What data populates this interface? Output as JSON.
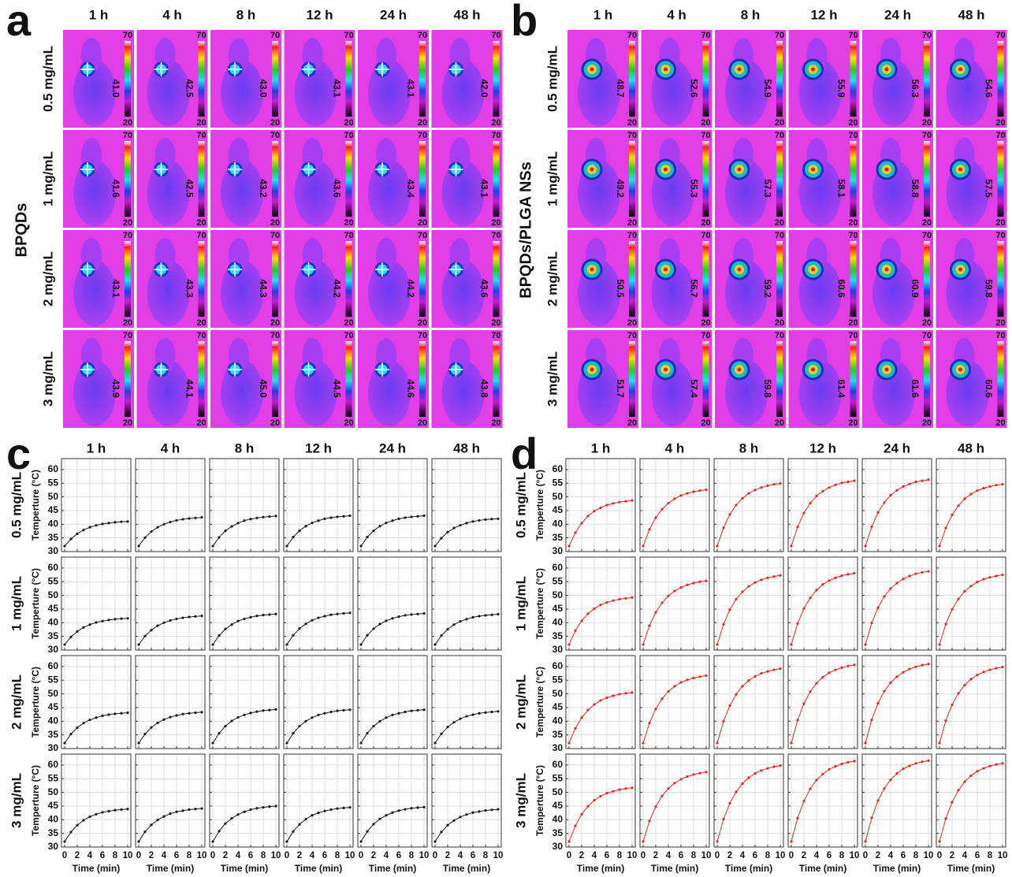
{
  "thermal": [
    {
      "letter": "a",
      "title": "BPQDs",
      "col_labels": [
        "1 h",
        "4 h",
        "8 h",
        "12 h",
        "24 h",
        "48 h"
      ],
      "row_labels": [
        "0.5 mg/mL",
        "1 mg/mL",
        "2 mg/mL",
        "3 mg/mL"
      ],
      "scale_max": "70",
      "scale_min": "20",
      "max_temps": [
        [
          "41.0",
          "42.5",
          "43.0",
          "43.1",
          "43.1",
          "42.0"
        ],
        [
          "41.6",
          "42.5",
          "43.2",
          "43.6",
          "43.4",
          "43.1"
        ],
        [
          "43.1",
          "43.3",
          "44.3",
          "44.2",
          "44.2",
          "43.6"
        ],
        [
          "43.9",
          "44.1",
          "45.0",
          "44.5",
          "44.6",
          "43.8"
        ]
      ]
    },
    {
      "letter": "b",
      "title": "BPQDs/PLGA NSs",
      "col_labels": [
        "1 h",
        "4 h",
        "8 h",
        "12 h",
        "24 h",
        "48 h"
      ],
      "row_labels": [
        "0.5 mg/mL",
        "1 mg/mL",
        "2 mg/mL",
        "3 mg/mL"
      ],
      "scale_max": "70",
      "scale_min": "20",
      "max_temps": [
        [
          "48.7",
          "52.6",
          "54.9",
          "55.9",
          "56.3",
          "54.6"
        ],
        [
          "49.2",
          "55.3",
          "57.3",
          "58.1",
          "58.8",
          "57.5"
        ],
        [
          "50.5",
          "56.7",
          "59.2",
          "60.6",
          "60.9",
          "59.8"
        ],
        [
          "51.7",
          "57.4",
          "59.8",
          "61.4",
          "61.6",
          "60.6"
        ]
      ]
    }
  ],
  "chart_data": [
    {
      "type": "line",
      "letter": "c",
      "col_labels": [
        "1 h",
        "4 h",
        "8 h",
        "12 h",
        "24 h",
        "48 h"
      ],
      "row_labels": [
        "0.5 mg/mL",
        "1 mg/mL",
        "2 mg/mL",
        "3 mg/mL"
      ],
      "xlabel": "Time (min)",
      "ylabel": "Temperture (°C)",
      "x": [
        0,
        1,
        2,
        3,
        4,
        5,
        6,
        7,
        8,
        9,
        10
      ],
      "xlim": [
        -0.5,
        10.5
      ],
      "ylim": [
        30,
        64
      ],
      "xticks": [
        0,
        2,
        4,
        6,
        8,
        10
      ],
      "yticks": [
        30,
        35,
        40,
        45,
        50,
        55,
        60
      ],
      "grid": true,
      "color": "#1a1a1a",
      "values": [
        [
          [
            32,
            34.6,
            36.5,
            37.9,
            38.9,
            39.6,
            40.1,
            40.4,
            40.7,
            40.9,
            41.0
          ],
          [
            32,
            35.1,
            37.3,
            38.9,
            40.0,
            40.8,
            41.4,
            41.8,
            42.1,
            42.3,
            42.5
          ],
          [
            32,
            35.2,
            37.6,
            39.2,
            40.4,
            41.3,
            41.9,
            42.3,
            42.6,
            42.8,
            43.0
          ],
          [
            32,
            35.3,
            37.6,
            39.3,
            40.5,
            41.3,
            42.0,
            42.4,
            42.7,
            42.9,
            43.1
          ],
          [
            32,
            35.3,
            37.6,
            39.3,
            40.5,
            41.3,
            42.0,
            42.4,
            42.7,
            42.9,
            43.1
          ],
          [
            32,
            34.9,
            37.1,
            38.6,
            39.6,
            40.4,
            41.0,
            41.4,
            41.7,
            41.9,
            42.0
          ]
        ],
        [
          [
            32,
            34.8,
            36.8,
            38.3,
            39.3,
            40.1,
            40.6,
            41.0,
            41.3,
            41.5,
            41.6
          ],
          [
            32,
            35.1,
            37.3,
            38.9,
            40.0,
            40.8,
            41.4,
            41.8,
            42.1,
            42.3,
            42.5
          ],
          [
            32,
            35.3,
            37.7,
            39.3,
            40.6,
            41.4,
            42.0,
            42.5,
            42.8,
            43.0,
            43.2
          ],
          [
            32,
            35.4,
            37.9,
            39.6,
            40.9,
            41.8,
            42.4,
            42.9,
            43.2,
            43.4,
            43.6
          ],
          [
            32,
            35.4,
            37.8,
            39.5,
            40.7,
            41.6,
            42.2,
            42.7,
            43.0,
            43.2,
            43.4
          ],
          [
            32,
            35.3,
            37.6,
            39.3,
            40.5,
            41.3,
            42.0,
            42.4,
            42.7,
            42.9,
            43.1
          ]
        ],
        [
          [
            32,
            35.3,
            37.6,
            39.3,
            40.5,
            41.3,
            42.0,
            42.4,
            42.7,
            42.9,
            43.1
          ],
          [
            32,
            35.3,
            37.7,
            39.4,
            40.6,
            41.5,
            42.1,
            42.6,
            42.9,
            43.1,
            43.3
          ],
          [
            32,
            35.6,
            38.2,
            40.1,
            41.4,
            42.3,
            43.0,
            43.5,
            43.9,
            44.1,
            44.3
          ],
          [
            32,
            35.6,
            38.2,
            40.0,
            41.3,
            42.3,
            42.9,
            43.4,
            43.8,
            44.0,
            44.2
          ],
          [
            32,
            35.6,
            38.2,
            40.0,
            41.3,
            42.3,
            42.9,
            43.4,
            43.8,
            44.0,
            44.2
          ],
          [
            32,
            35.4,
            37.9,
            39.6,
            40.9,
            41.8,
            42.4,
            42.9,
            43.2,
            43.4,
            43.6
          ]
        ],
        [
          [
            32,
            35.5,
            38.0,
            39.8,
            41.1,
            42.0,
            42.7,
            43.1,
            43.5,
            43.7,
            43.9
          ],
          [
            32,
            35.6,
            38.1,
            39.9,
            41.2,
            42.2,
            42.9,
            43.3,
            43.7,
            43.9,
            44.1
          ],
          [
            32,
            35.8,
            38.6,
            40.5,
            41.9,
            42.9,
            43.7,
            44.2,
            44.5,
            44.8,
            45.0
          ],
          [
            32,
            35.7,
            38.3,
            40.2,
            41.6,
            42.5,
            43.2,
            43.7,
            44.1,
            44.3,
            44.5
          ],
          [
            32,
            35.7,
            38.4,
            40.3,
            41.6,
            42.6,
            43.3,
            43.8,
            44.2,
            44.4,
            44.6
          ],
          [
            32,
            35.5,
            38.0,
            39.7,
            41.0,
            41.9,
            42.6,
            43.0,
            43.4,
            43.6,
            43.8
          ]
        ]
      ]
    },
    {
      "type": "line",
      "letter": "d",
      "col_labels": [
        "1 h",
        "4 h",
        "8 h",
        "12 h",
        "24 h",
        "48 h"
      ],
      "row_labels": [
        "0.5 mg/mL",
        "1 mg/mL",
        "2 mg/mL",
        "3 mg/mL"
      ],
      "xlabel": "Time (min)",
      "ylabel": "Temperture (°C)",
      "x": [
        0,
        1,
        2,
        3,
        4,
        5,
        6,
        7,
        8,
        9,
        10
      ],
      "xlim": [
        -0.5,
        10.5
      ],
      "ylim": [
        30,
        64
      ],
      "xticks": [
        0,
        2,
        4,
        6,
        8,
        10
      ],
      "yticks": [
        30,
        35,
        40,
        45,
        50,
        55,
        60
      ],
      "grid": true,
      "color": "#e8261e",
      "values": [
        [
          [
            32,
            36.9,
            40.4,
            43.0,
            44.8,
            46.0,
            47.0,
            47.6,
            48.1,
            48.4,
            48.7
          ],
          [
            32,
            38.1,
            42.4,
            45.5,
            47.7,
            49.3,
            50.5,
            51.3,
            51.9,
            52.3,
            52.6
          ],
          [
            32,
            38.7,
            43.6,
            47.0,
            49.5,
            51.3,
            52.5,
            53.4,
            54.1,
            54.6,
            54.9
          ],
          [
            32,
            39.0,
            44.1,
            47.7,
            50.3,
            52.1,
            53.4,
            54.4,
            55.1,
            55.5,
            55.9
          ],
          [
            32,
            39.1,
            44.3,
            47.9,
            50.6,
            52.4,
            53.8,
            54.7,
            55.5,
            55.9,
            56.3
          ],
          [
            32,
            38.6,
            43.4,
            46.8,
            49.3,
            51.0,
            52.3,
            53.2,
            53.8,
            54.3,
            54.6
          ]
        ],
        [
          [
            32,
            37.1,
            40.7,
            43.3,
            45.1,
            46.5,
            47.4,
            48.1,
            48.6,
            48.9,
            49.2
          ],
          [
            32,
            38.9,
            43.8,
            47.3,
            49.8,
            51.6,
            52.9,
            53.8,
            54.5,
            55.0,
            55.3
          ],
          [
            32,
            39.4,
            44.8,
            48.6,
            51.3,
            53.3,
            54.7,
            55.7,
            56.4,
            56.9,
            57.3
          ],
          [
            32,
            39.7,
            45.2,
            49.1,
            51.9,
            54.0,
            55.4,
            56.4,
            57.2,
            57.7,
            58.1
          ],
          [
            32,
            39.9,
            45.5,
            49.6,
            52.5,
            54.5,
            56.0,
            57.1,
            57.9,
            58.4,
            58.8
          ],
          [
            32,
            39.5,
            44.9,
            48.7,
            51.5,
            53.4,
            54.9,
            55.9,
            56.6,
            57.1,
            57.5
          ]
        ],
        [
          [
            32,
            37.4,
            41.3,
            44.1,
            46.1,
            47.6,
            48.6,
            49.3,
            49.9,
            50.2,
            50.5
          ],
          [
            32,
            39.3,
            44.5,
            48.2,
            50.9,
            52.8,
            54.2,
            55.1,
            55.8,
            56.3,
            56.7
          ],
          [
            32,
            40.0,
            45.7,
            49.8,
            52.8,
            54.9,
            56.4,
            57.5,
            58.2,
            58.8,
            59.2
          ],
          [
            32,
            40.4,
            46.4,
            50.8,
            53.9,
            56.1,
            57.7,
            58.8,
            59.6,
            60.2,
            60.6
          ],
          [
            32,
            40.5,
            46.6,
            51.0,
            54.1,
            56.3,
            57.9,
            59.1,
            59.9,
            60.5,
            60.9
          ],
          [
            32,
            40.2,
            46.0,
            50.2,
            53.2,
            55.4,
            56.9,
            58.0,
            58.8,
            59.4,
            59.8
          ]
        ],
        [
          [
            32,
            37.8,
            42.0,
            44.9,
            47.1,
            48.6,
            49.7,
            50.4,
            51.0,
            51.4,
            51.7
          ],
          [
            32,
            39.5,
            44.8,
            48.7,
            51.4,
            53.4,
            54.8,
            55.8,
            56.5,
            57.0,
            57.4
          ],
          [
            32,
            40.2,
            46.0,
            50.2,
            53.2,
            55.4,
            56.9,
            58.0,
            58.8,
            59.4,
            59.8
          ],
          [
            32,
            40.6,
            46.8,
            51.3,
            54.5,
            56.7,
            58.4,
            59.5,
            60.4,
            61.0,
            61.4
          ],
          [
            32,
            40.7,
            47.0,
            51.4,
            54.6,
            56.9,
            58.6,
            59.7,
            60.6,
            61.2,
            61.6
          ],
          [
            32,
            40.4,
            46.4,
            50.8,
            53.9,
            56.1,
            57.7,
            58.8,
            59.6,
            60.2,
            60.6
          ]
        ]
      ]
    }
  ]
}
